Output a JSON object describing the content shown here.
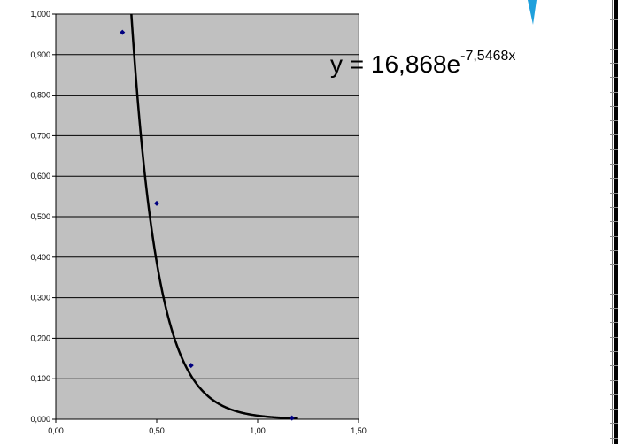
{
  "chart_data": {
    "type": "scatter",
    "title": "",
    "xlabel": "",
    "ylabel": "",
    "xlim": [
      0,
      1.5
    ],
    "ylim": [
      0,
      1.0
    ],
    "x_ticks": [
      "0,00",
      "0,50",
      "1,00",
      "1,50"
    ],
    "y_ticks": [
      "0,000",
      "0,100",
      "0,200",
      "0,300",
      "0,400",
      "0,500",
      "0,600",
      "0,700",
      "0,800",
      "0,900",
      "1,000"
    ],
    "grid": "horizontal",
    "background_color": "#c0c0c0",
    "marker_color": "#000080",
    "trendline_color": "#000000",
    "accent_color": "#1fa0dc",
    "series": [
      {
        "points": [
          {
            "x": 0.33,
            "y": 0.955
          },
          {
            "x": 0.5,
            "y": 0.533
          },
          {
            "x": 0.67,
            "y": 0.133
          },
          {
            "x": 1.17,
            "y": 0.003
          }
        ]
      }
    ],
    "trendline": {
      "type": "exponential",
      "a": 16.868,
      "b": -7.5468
    },
    "equation": {
      "prefix": "y = 16,868e",
      "exponent": "-7,5468x"
    }
  }
}
